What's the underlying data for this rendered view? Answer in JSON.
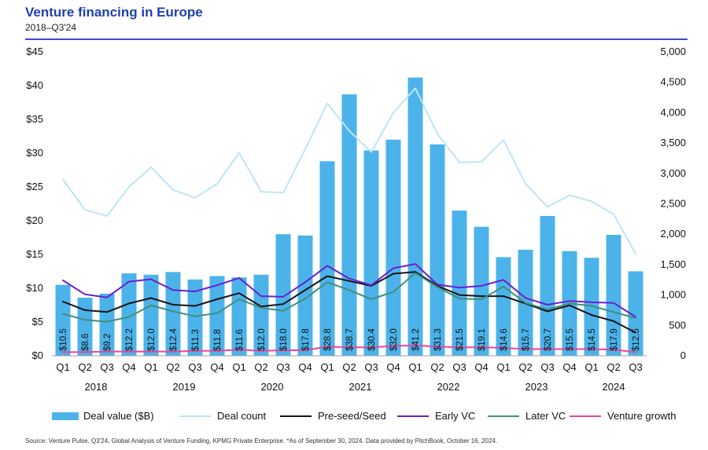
{
  "header": {
    "title": "Venture financing in Europe",
    "subtitle": "2018–Q3'24"
  },
  "footer": {
    "source": "Source: Venture Pulse, Q3'24, Global Analysis of Venture Funding, KPMG Private Enterprise. *As of September 30, 2024. Data provided by PitchBook, October 16, 2024."
  },
  "legend": {
    "deal_value": "Deal value ($B)",
    "deal_count": "Deal count",
    "seed": "Pre-seed/Seed",
    "early": "Early VC",
    "later": "Later VC",
    "growth": "Venture growth"
  },
  "colors": {
    "bar": "#4cb3ea",
    "deal_count": "#bde5f6",
    "seed": "#141414",
    "early": "#6a1fd0",
    "later": "#3f8f79",
    "growth": "#e8469b",
    "title": "#1f3fb0"
  },
  "chart_data": {
    "type": "bar",
    "categories": [
      "Q1",
      "Q2",
      "Q3",
      "Q4",
      "Q1",
      "Q2",
      "Q3",
      "Q4",
      "Q1",
      "Q2",
      "Q3",
      "Q4",
      "Q1",
      "Q2",
      "Q3",
      "Q4",
      "Q1",
      "Q2",
      "Q3",
      "Q4",
      "Q1",
      "Q2",
      "Q3",
      "Q4",
      "Q1",
      "Q2",
      "Q3"
    ],
    "years": [
      {
        "label": "2018",
        "start": 0,
        "end": 3
      },
      {
        "label": "2019",
        "start": 4,
        "end": 7
      },
      {
        "label": "2020",
        "start": 8,
        "end": 11
      },
      {
        "label": "2021",
        "start": 12,
        "end": 15
      },
      {
        "label": "2022",
        "start": 16,
        "end": 19
      },
      {
        "label": "2023",
        "start": 20,
        "end": 23
      },
      {
        "label": "2024",
        "start": 24,
        "end": 26
      }
    ],
    "y_left": {
      "ylim": [
        0,
        45
      ],
      "ticks": [
        0,
        5,
        10,
        15,
        20,
        25,
        30,
        35,
        40,
        45
      ],
      "tick_labels": [
        "$0",
        "$5",
        "$10",
        "$15",
        "$20",
        "$25",
        "$30",
        "$35",
        "$40",
        "$45"
      ]
    },
    "y_right": {
      "ylim": [
        0,
        5000
      ],
      "ticks": [
        0,
        500,
        1000,
        1500,
        2000,
        2500,
        3000,
        3500,
        4000,
        4500,
        5000
      ],
      "tick_labels": [
        "0",
        "500",
        "1,000",
        "1,500",
        "2,000",
        "2,500",
        "3,000",
        "3,500",
        "4,000",
        "4,500",
        "5,000"
      ]
    },
    "bars": {
      "name": "Deal value ($B)",
      "values": [
        10.5,
        8.6,
        9.2,
        12.2,
        12.0,
        12.4,
        11.3,
        11.8,
        11.6,
        12.0,
        18.0,
        17.8,
        28.8,
        38.7,
        30.4,
        32.0,
        41.2,
        31.3,
        21.5,
        19.1,
        14.6,
        15.7,
        20.7,
        15.5,
        14.5,
        17.9,
        12.5
      ],
      "labels": [
        "$10.5",
        "$8.6",
        "$9.2",
        "$12.2",
        "$12.0",
        "$12.4",
        "$11.3",
        "$11.8",
        "$11.6",
        "$12.0",
        "$18.0",
        "$17.8",
        "$28.8",
        "$38.7",
        "$30.4",
        "$32.0",
        "$41.2",
        "$31.3",
        "$21.5",
        "$19.1",
        "$14.6",
        "$15.7",
        "$20.7",
        "$15.5",
        "$14.5",
        "$17.9",
        "$12.5"
      ]
    },
    "series": [
      {
        "key": "deal_count",
        "name": "Deal count",
        "axis": "right",
        "values": [
          2900,
          2400,
          2300,
          2780,
          3100,
          2730,
          2600,
          2830,
          3340,
          2700,
          2680,
          3400,
          4150,
          3700,
          3350,
          4000,
          4400,
          3650,
          3180,
          3190,
          3550,
          2830,
          2450,
          2640,
          2540,
          2330,
          1680
        ]
      },
      {
        "key": "seed",
        "name": "Pre-seed/Seed",
        "axis": "right",
        "values": [
          890,
          750,
          720,
          860,
          950,
          840,
          820,
          930,
          1030,
          810,
          850,
          1080,
          1310,
          1230,
          1150,
          1350,
          1380,
          1150,
          1000,
          980,
          980,
          860,
          730,
          830,
          670,
          570,
          380
        ]
      },
      {
        "key": "early",
        "name": "Early VC",
        "axis": "right",
        "values": [
          1240,
          1010,
          960,
          1220,
          1260,
          1080,
          1060,
          1160,
          1280,
          980,
          970,
          1210,
          1480,
          1270,
          1160,
          1440,
          1510,
          1170,
          1120,
          1150,
          1250,
          950,
          840,
          900,
          880,
          870,
          640
        ]
      },
      {
        "key": "later",
        "name": "Later VC",
        "axis": "right",
        "values": [
          690,
          590,
          560,
          640,
          830,
          730,
          650,
          700,
          930,
          790,
          740,
          940,
          1210,
          1080,
          930,
          1050,
          1360,
          1130,
          940,
          930,
          1140,
          870,
          760,
          860,
          820,
          720,
          620
        ]
      },
      {
        "key": "growth",
        "name": "Venture growth",
        "axis": "right",
        "values": [
          60,
          60,
          70,
          70,
          70,
          70,
          80,
          80,
          100,
          80,
          90,
          90,
          150,
          140,
          140,
          160,
          170,
          150,
          140,
          140,
          130,
          110,
          110,
          110,
          110,
          100,
          60
        ]
      }
    ]
  }
}
